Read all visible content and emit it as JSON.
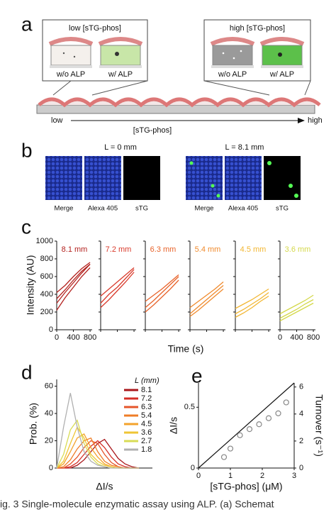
{
  "panel_a": {
    "label": "a",
    "low_box": {
      "title": "low [sTG-phos]",
      "left": "w/o ALP",
      "right": "w/ ALP"
    },
    "high_box": {
      "title": "high [sTG-phos]",
      "left": "w/o ALP",
      "right": "w/ ALP"
    },
    "axis": {
      "low": "low",
      "high": "high",
      "label": "[sTG-phos]"
    }
  },
  "panel_b": {
    "label": "b",
    "left": {
      "title": "L = 0 mm",
      "images": [
        "Merge",
        "Alexa 405",
        "sTG"
      ]
    },
    "right": {
      "title": "L = 8.1 mm",
      "images": [
        "Merge",
        "Alexa 405",
        "sTG"
      ]
    }
  },
  "panel_c": {
    "label": "c",
    "ylabel": "Intensity (AU)",
    "xlabel": "Time (s)"
  },
  "caption": "ig. 3  Single-molecule enzymatic assay using ALP. (a) Schemat",
  "chart_data": [
    {
      "type": "line",
      "title": "8.1 mm",
      "color": "#b3211e",
      "x": [
        0,
        200,
        400,
        600,
        800
      ],
      "xlim": [
        0,
        850
      ],
      "xticks": [
        0,
        400,
        800
      ],
      "ylim": [
        0,
        1000
      ],
      "yticks": [
        0,
        200,
        400,
        600,
        800,
        1000
      ],
      "series": [
        {
          "values": [
            300,
            420,
            530,
            640,
            740
          ]
        },
        {
          "values": [
            420,
            500,
            600,
            690,
            760
          ]
        },
        {
          "values": [
            220,
            360,
            480,
            600,
            700
          ]
        },
        {
          "values": [
            350,
            450,
            560,
            660,
            740
          ]
        }
      ]
    },
    {
      "type": "line",
      "title": "7.2 mm",
      "color": "#d93a2b",
      "x": [
        0,
        200,
        400,
        600,
        800
      ],
      "xlim": [
        0,
        850
      ],
      "xticks": [
        0,
        400,
        800
      ],
      "ylim": [
        0,
        1000
      ],
      "yticks": [
        0,
        200,
        400,
        600,
        800,
        1000
      ],
      "series": [
        {
          "values": [
            300,
            400,
            480,
            580,
            680
          ]
        },
        {
          "values": [
            380,
            460,
            540,
            620,
            700
          ]
        },
        {
          "values": [
            250,
            340,
            440,
            540,
            650
          ]
        }
      ]
    },
    {
      "type": "line",
      "title": "6.3 mm",
      "color": "#e8632a",
      "x": [
        0,
        200,
        400,
        600,
        800
      ],
      "xlim": [
        0,
        850
      ],
      "xticks": [
        0,
        400,
        800
      ],
      "ylim": [
        0,
        1000
      ],
      "yticks": [
        0,
        200,
        400,
        600,
        800,
        1000
      ],
      "series": [
        {
          "values": [
            250,
            330,
            420,
            510,
            600
          ]
        },
        {
          "values": [
            320,
            390,
            460,
            540,
            620
          ]
        },
        {
          "values": [
            200,
            280,
            370,
            460,
            560
          ]
        }
      ]
    },
    {
      "type": "line",
      "title": "5.4 mm",
      "color": "#f08a2c",
      "x": [
        0,
        200,
        400,
        600,
        800
      ],
      "xlim": [
        0,
        850
      ],
      "xticks": [
        0,
        400,
        800
      ],
      "ylim": [
        0,
        1000
      ],
      "yticks": [
        0,
        200,
        400,
        600,
        800,
        1000
      ],
      "series": [
        {
          "values": [
            180,
            260,
            340,
            420,
            500
          ]
        },
        {
          "values": [
            250,
            320,
            390,
            460,
            540
          ]
        },
        {
          "values": [
            150,
            220,
            300,
            380,
            460
          ]
        }
      ]
    },
    {
      "type": "line",
      "title": "4.5 mm",
      "color": "#f2b631",
      "x": [
        0,
        200,
        400,
        600,
        800
      ],
      "xlim": [
        0,
        850
      ],
      "xticks": [
        0,
        400,
        800
      ],
      "ylim": [
        0,
        1000
      ],
      "yticks": [
        0,
        200,
        400,
        600,
        800,
        1000
      ],
      "series": [
        {
          "values": [
            180,
            230,
            290,
            350,
            420
          ]
        },
        {
          "values": [
            240,
            290,
            340,
            400,
            460
          ]
        },
        {
          "values": [
            140,
            190,
            250,
            320,
            380
          ]
        }
      ]
    },
    {
      "type": "line",
      "title": "3.6 mm",
      "color": "#d4d84a",
      "x": [
        0,
        200,
        400,
        600,
        800
      ],
      "xlim": [
        0,
        850
      ],
      "xticks": [
        0,
        400,
        800
      ],
      "ylim": [
        0,
        1000
      ],
      "yticks": [
        0,
        200,
        400,
        600,
        800,
        1000
      ],
      "series": [
        {
          "values": [
            130,
            180,
            230,
            290,
            340
          ]
        },
        {
          "values": [
            180,
            230,
            280,
            330,
            390
          ]
        },
        {
          "values": [
            100,
            150,
            200,
            250,
            300
          ]
        }
      ]
    },
    {
      "type": "line",
      "label": "d",
      "xlabel": "ΔI/s",
      "ylabel": "Prob. (%)",
      "legend_title": "L (mm)",
      "legend": "upper right",
      "x": [
        0,
        0.05,
        0.1,
        0.15,
        0.2,
        0.25,
        0.3,
        0.35,
        0.4,
        0.45,
        0.5,
        0.55,
        0.6
      ],
      "xlim": [
        0,
        0.7
      ],
      "ylim": [
        0,
        65
      ],
      "yticks": [
        0,
        20,
        40,
        60
      ],
      "series": [
        {
          "name": "8.1",
          "color": "#a8161a",
          "values": [
            0,
            0,
            0,
            2,
            6,
            12,
            18,
            21,
            14,
            7,
            3,
            1,
            0
          ]
        },
        {
          "name": "7.2",
          "color": "#d42e26",
          "values": [
            0,
            0,
            1,
            4,
            10,
            16,
            20,
            15,
            8,
            3,
            1,
            0,
            0
          ]
        },
        {
          "name": "6.3",
          "color": "#e5552a",
          "values": [
            0,
            0,
            3,
            8,
            15,
            20,
            18,
            10,
            4,
            1,
            0,
            0,
            0
          ]
        },
        {
          "name": "5.4",
          "color": "#ef7d27",
          "values": [
            0,
            1,
            6,
            14,
            20,
            22,
            12,
            5,
            2,
            1,
            0,
            0,
            0
          ]
        },
        {
          "name": "4.5",
          "color": "#f3a22b",
          "values": [
            0,
            3,
            12,
            22,
            25,
            15,
            8,
            3,
            1,
            0,
            0,
            0,
            0
          ]
        },
        {
          "name": "3.6",
          "color": "#efc635",
          "values": [
            0,
            5,
            18,
            30,
            22,
            10,
            5,
            2,
            1,
            0,
            0,
            0,
            0
          ]
        },
        {
          "name": "2.7",
          "color": "#d8dc55",
          "values": [
            0,
            10,
            28,
            35,
            18,
            8,
            3,
            1,
            0,
            0,
            0,
            0,
            0
          ]
        },
        {
          "name": "1.8",
          "color": "#b0b0b0",
          "values": [
            0,
            30,
            55,
            30,
            12,
            5,
            2,
            1,
            0,
            0,
            0,
            0,
            0
          ]
        }
      ]
    },
    {
      "type": "scatter",
      "label": "e",
      "xlabel": "[sTG-phos] (μM)",
      "ylabel": "ΔI/s",
      "y2label": "Turnover (s⁻¹)",
      "color": "#888888",
      "x": [
        0.8,
        1.0,
        1.3,
        1.6,
        1.9,
        2.2,
        2.5,
        2.75
      ],
      "values": [
        0.09,
        0.16,
        0.27,
        0.32,
        0.36,
        0.41,
        0.45,
        0.54
      ],
      "fit": {
        "x": [
          0,
          3
        ],
        "values": [
          0,
          0.7
        ]
      },
      "xlim": [
        0,
        3
      ],
      "xticks": [
        0,
        1,
        2,
        3
      ],
      "ylim": [
        0,
        0.7
      ],
      "yticks": [
        0,
        0.5
      ],
      "y2lim": [
        0,
        6.3
      ],
      "y2ticks": [
        0,
        2,
        4,
        6
      ]
    }
  ]
}
